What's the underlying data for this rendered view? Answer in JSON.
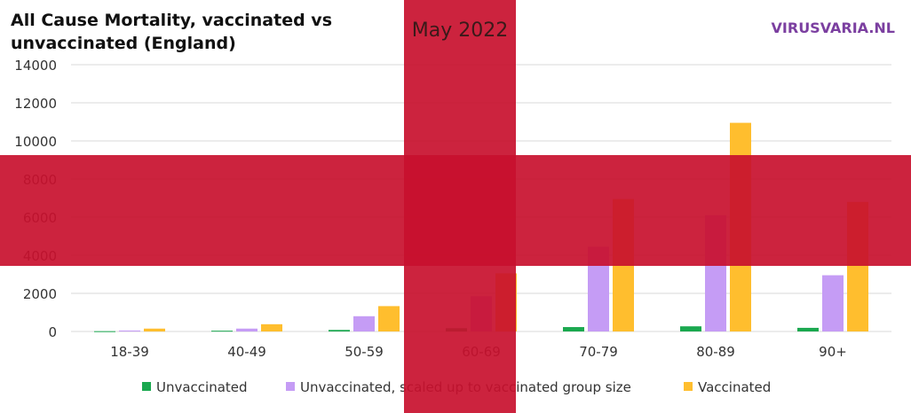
{
  "title_line1": "All Cause Mortality, vaccinated vs",
  "title_line2": "unvaccinated (England)",
  "watermark": "VIRUSVARIA.NL",
  "overlay_label": "May 2022",
  "colors": {
    "unvaccinated": "#1aa84f",
    "scaled": "#c59cf5",
    "vaccinated": "#ffbe2e",
    "flag_red": "#c8102e",
    "brand": "#7b3fa0",
    "grid": "#d9d9d9"
  },
  "chart_data": {
    "type": "bar",
    "categories": [
      "18-39",
      "40-49",
      "50-59",
      "60-69",
      "70-79",
      "80-89",
      "90+"
    ],
    "series": [
      {
        "name": "Unvaccinated",
        "values": [
          15,
          40,
          80,
          170,
          230,
          270,
          190
        ]
      },
      {
        "name": "Unvaccinated, scaled up to vaccinated group size",
        "values": [
          50,
          150,
          800,
          1850,
          4450,
          6100,
          2950
        ]
      },
      {
        "name": "Vaccinated",
        "values": [
          150,
          380,
          1330,
          3050,
          6950,
          10950,
          6800
        ]
      }
    ],
    "y_ticks": [
      "0",
      "2000",
      "4000",
      "6000",
      "8000",
      "10000",
      "12000",
      "14000"
    ],
    "ylim": [
      0,
      14000
    ],
    "grid": true,
    "legend_position": "bottom"
  }
}
